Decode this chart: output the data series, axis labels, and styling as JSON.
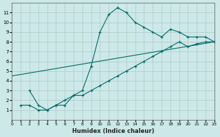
{
  "xlabel": "Humidex (Indice chaleur)",
  "background_color": "#cce8e8",
  "grid_color": "#b0c8c8",
  "line_color": "#006666",
  "xlim": [
    0,
    23
  ],
  "ylim": [
    0,
    12
  ],
  "xticks": [
    0,
    1,
    2,
    3,
    4,
    5,
    6,
    7,
    8,
    9,
    10,
    11,
    12,
    13,
    14,
    15,
    16,
    17,
    18,
    19,
    20,
    21,
    22,
    23
  ],
  "yticks": [
    1,
    2,
    3,
    4,
    5,
    6,
    7,
    8,
    9,
    10,
    11
  ],
  "curve1_x": [
    1,
    2,
    3,
    4,
    5,
    6,
    7,
    8,
    9,
    10,
    11,
    12,
    13,
    14,
    15,
    16,
    17,
    18,
    19,
    20,
    21,
    22,
    23
  ],
  "curve1_y": [
    1.5,
    1.5,
    1.0,
    1.0,
    1.5,
    1.5,
    2.5,
    3.0,
    5.5,
    9.0,
    10.8,
    11.5,
    11.0,
    10.0,
    9.5,
    9.0,
    8.5,
    9.3,
    9.0,
    8.5,
    8.5,
    8.5,
    8.0
  ],
  "curve2_x": [
    0,
    23
  ],
  "curve2_y": [
    4.5,
    8.0
  ],
  "curve3_x": [
    2,
    3,
    4,
    5,
    6,
    7,
    8,
    9,
    10,
    11,
    12,
    13,
    14,
    15,
    16,
    17,
    18,
    19,
    20,
    21,
    22,
    23
  ],
  "curve3_y": [
    3.0,
    1.5,
    1.0,
    1.5,
    2.0,
    2.5,
    2.5,
    3.0,
    3.5,
    4.0,
    4.5,
    5.0,
    5.5,
    6.0,
    6.5,
    7.0,
    7.5,
    8.0,
    7.5,
    7.8,
    8.0,
    8.0
  ]
}
